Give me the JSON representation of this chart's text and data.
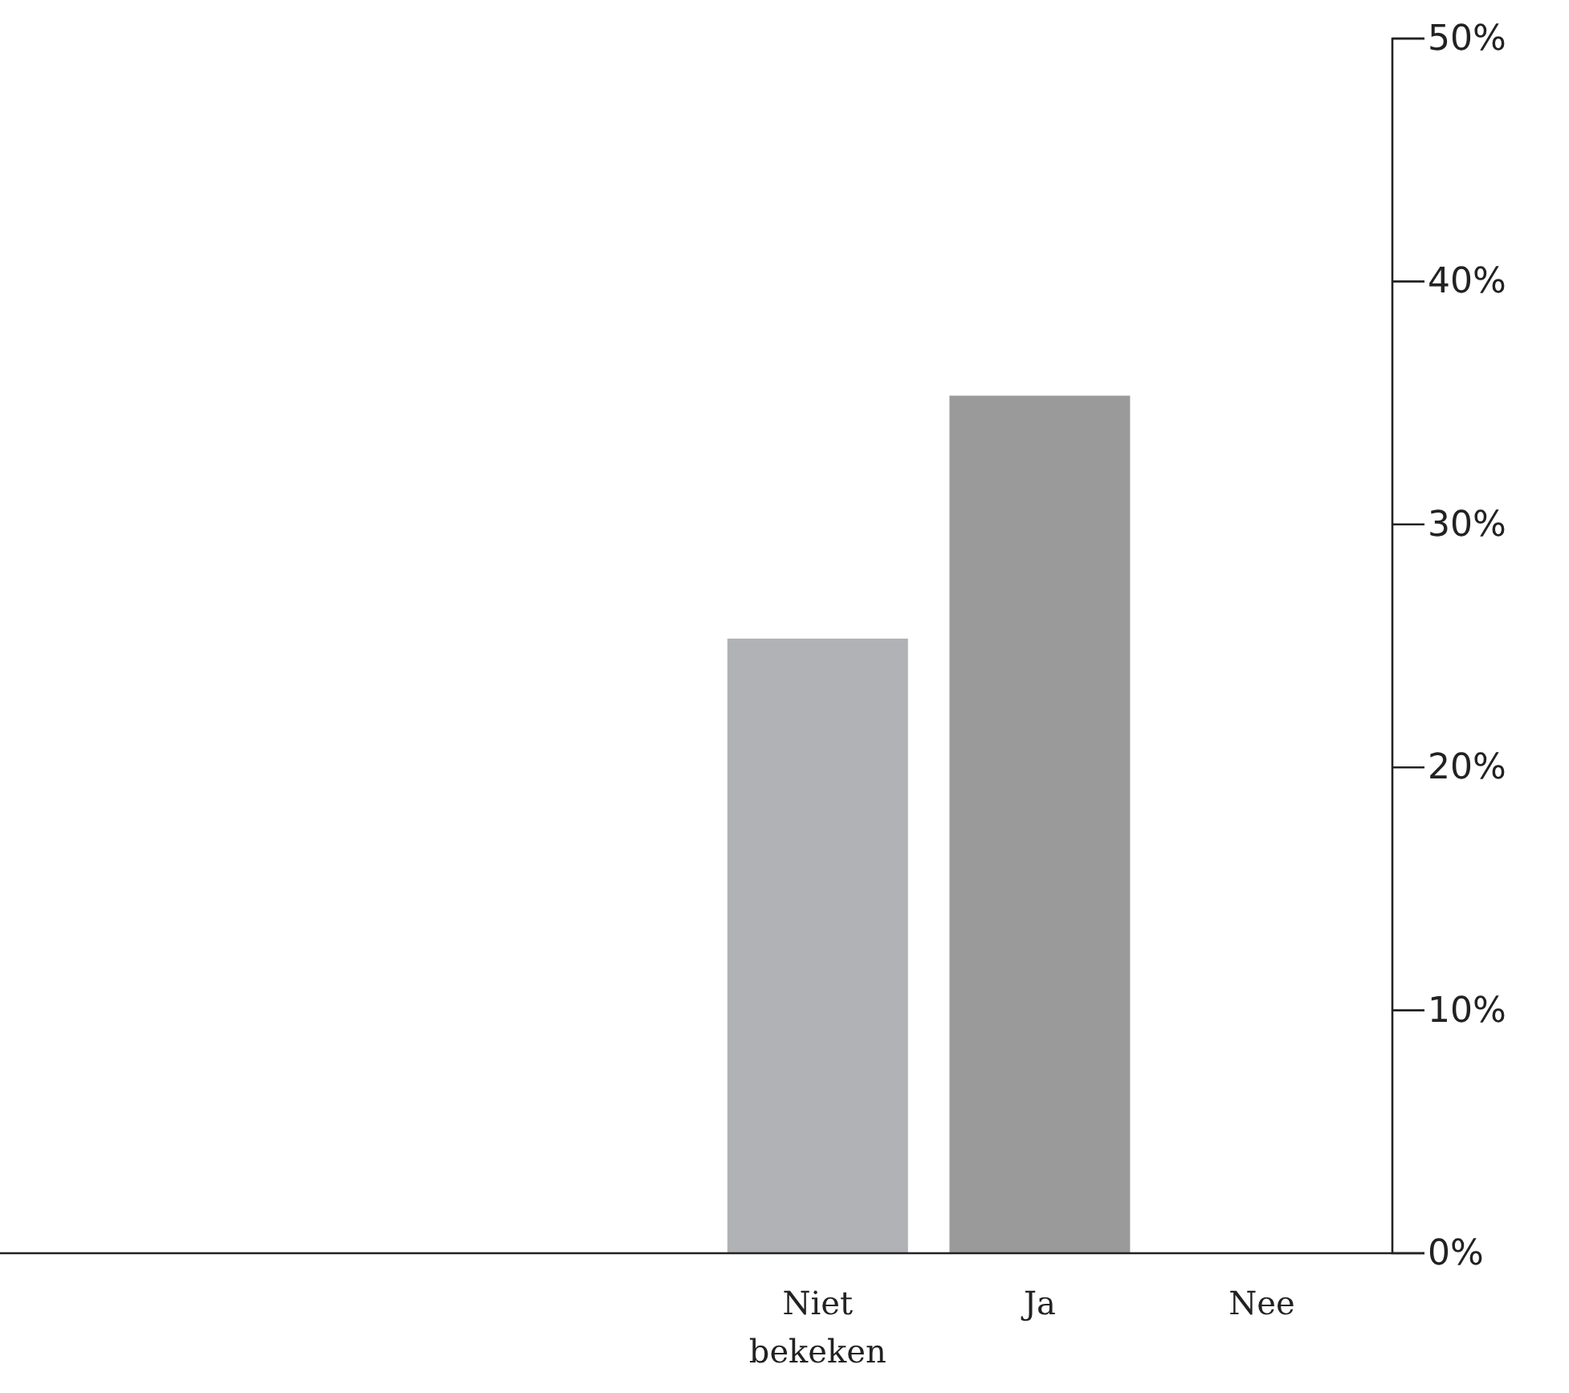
{
  "chart_data": {
    "type": "bar",
    "categories": [
      null,
      null,
      null,
      "Niet bekeken",
      "Ja",
      "Nee"
    ],
    "values": [
      null,
      null,
      null,
      25.3,
      35.3,
      0
    ],
    "colors": [
      null,
      null,
      null,
      "#b1b2b5",
      "#9a9a9a",
      "#b1b2b5"
    ],
    "ylim": [
      0,
      50
    ],
    "yticks": [
      {
        "value": 0,
        "label": "0%"
      },
      {
        "value": 10,
        "label": "10%"
      },
      {
        "value": 20,
        "label": "20%"
      },
      {
        "value": 30,
        "label": "30%"
      },
      {
        "value": 40,
        "label": "40%"
      },
      {
        "value": 50,
        "label": "50%"
      }
    ],
    "grid": false
  }
}
